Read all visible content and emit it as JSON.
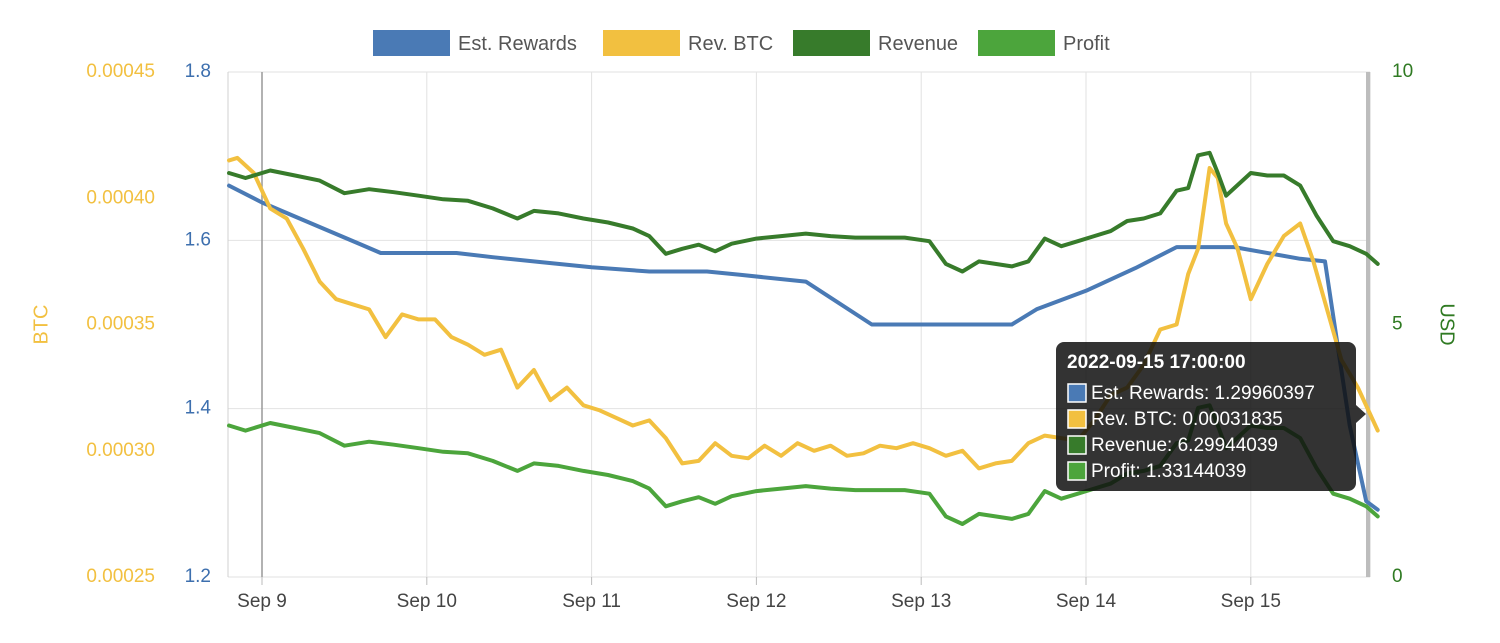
{
  "chart_data": {
    "type": "line",
    "x_range": [
      "2022-09-08 18:00",
      "2022-09-15 19:00"
    ],
    "x_ticks": [
      "Sep 9",
      "Sep 10",
      "Sep 11",
      "Sep 12",
      "Sep 13",
      "Sep 14",
      "Sep 15"
    ],
    "axes": {
      "btc": {
        "label": "BTC",
        "ticks": [
          "0.00025",
          "0.00030",
          "0.00035",
          "0.00040",
          "0.00045"
        ],
        "min": 0.00025,
        "max": 0.00045,
        "color": "#f2c040"
      },
      "rewards": {
        "ticks": [
          "1.2",
          "1.4",
          "1.6",
          "1.8"
        ],
        "min": 1.2,
        "max": 1.8,
        "color": "#3d6fae"
      },
      "usd": {
        "label": "USD",
        "ticks": [
          "0",
          "5",
          "10"
        ],
        "min": 0,
        "max": 10,
        "color": "#2f7a22"
      }
    },
    "grid": true,
    "legend_position": "top-center",
    "series": [
      {
        "name": "Est. Rewards",
        "axis": "rewards",
        "color": "#4a7ab5",
        "points": [
          [
            0,
            1.665
          ],
          [
            0.2,
            1.645
          ],
          [
            0.5,
            1.62
          ],
          [
            0.8,
            1.595
          ],
          [
            0.92,
            1.585
          ],
          [
            1.1,
            1.585
          ],
          [
            1.38,
            1.585
          ],
          [
            1.6,
            1.58
          ],
          [
            1.9,
            1.574
          ],
          [
            2.2,
            1.568
          ],
          [
            2.55,
            1.563
          ],
          [
            2.9,
            1.563
          ],
          [
            3.1,
            1.559
          ],
          [
            3.5,
            1.551
          ],
          [
            3.9,
            1.5
          ],
          [
            4.1,
            1.5
          ],
          [
            4.3,
            1.5
          ],
          [
            4.6,
            1.5
          ],
          [
            4.75,
            1.5
          ],
          [
            4.9,
            1.518
          ],
          [
            5.2,
            1.54
          ],
          [
            5.5,
            1.567
          ],
          [
            5.75,
            1.592
          ],
          [
            6.0,
            1.592
          ],
          [
            6.1,
            1.592
          ],
          [
            6.5,
            1.578
          ],
          [
            6.65,
            1.575
          ],
          [
            6.8,
            1.38
          ],
          [
            6.9,
            1.29
          ],
          [
            6.97,
            1.28
          ]
        ]
      },
      {
        "name": "Rev. BTC",
        "axis": "btc",
        "color": "#f2c040",
        "points": [
          [
            0,
            0.000415
          ],
          [
            0.05,
            0.000416
          ],
          [
            0.15,
            0.00041
          ],
          [
            0.25,
            0.000396
          ],
          [
            0.35,
            0.000392
          ],
          [
            0.45,
            0.00038
          ],
          [
            0.55,
            0.000367
          ],
          [
            0.65,
            0.00036
          ],
          [
            0.75,
            0.000358
          ],
          [
            0.85,
            0.000356
          ],
          [
            0.95,
            0.000345
          ],
          [
            1.05,
            0.000354
          ],
          [
            1.15,
            0.000352
          ],
          [
            1.25,
            0.000352
          ],
          [
            1.35,
            0.000345
          ],
          [
            1.45,
            0.000342
          ],
          [
            1.55,
            0.000338
          ],
          [
            1.65,
            0.00034
          ],
          [
            1.75,
            0.000325
          ],
          [
            1.85,
            0.000332
          ],
          [
            1.95,
            0.00032
          ],
          [
            2.05,
            0.000325
          ],
          [
            2.15,
            0.000318
          ],
          [
            2.25,
            0.000316
          ],
          [
            2.35,
            0.000313
          ],
          [
            2.45,
            0.00031
          ],
          [
            2.55,
            0.000312
          ],
          [
            2.65,
            0.000305
          ],
          [
            2.75,
            0.000295
          ],
          [
            2.85,
            0.000296
          ],
          [
            2.95,
            0.000303
          ],
          [
            3.05,
            0.000298
          ],
          [
            3.15,
            0.000297
          ],
          [
            3.25,
            0.000302
          ],
          [
            3.35,
            0.000298
          ],
          [
            3.45,
            0.000303
          ],
          [
            3.55,
            0.0003
          ],
          [
            3.65,
            0.000302
          ],
          [
            3.75,
            0.000298
          ],
          [
            3.85,
            0.000299
          ],
          [
            3.95,
            0.000302
          ],
          [
            4.05,
            0.000301
          ],
          [
            4.15,
            0.000303
          ],
          [
            4.25,
            0.000301
          ],
          [
            4.35,
            0.000298
          ],
          [
            4.45,
            0.0003
          ],
          [
            4.55,
            0.000293
          ],
          [
            4.65,
            0.000295
          ],
          [
            4.75,
            0.000296
          ],
          [
            4.85,
            0.000303
          ],
          [
            4.95,
            0.000306
          ],
          [
            5.05,
            0.000305
          ],
          [
            5.15,
            0.000304
          ],
          [
            5.25,
            0.000312
          ],
          [
            5.35,
            0.000322
          ],
          [
            5.45,
            0.000325
          ],
          [
            5.55,
            0.000334
          ],
          [
            5.65,
            0.000348
          ],
          [
            5.75,
            0.00035
          ],
          [
            5.82,
            0.00037
          ],
          [
            5.88,
            0.00038
          ],
          [
            5.95,
            0.000412
          ],
          [
            6.0,
            0.000408
          ],
          [
            6.05,
            0.00039
          ],
          [
            6.12,
            0.00038
          ],
          [
            6.2,
            0.00036
          ],
          [
            6.3,
            0.000374
          ],
          [
            6.4,
            0.000385
          ],
          [
            6.5,
            0.00039
          ],
          [
            6.58,
            0.000375
          ],
          [
            6.68,
            0.000352
          ],
          [
            6.75,
            0.000336
          ],
          [
            6.85,
            0.000325
          ],
          [
            6.97,
            0.000308
          ]
        ]
      },
      {
        "name": "Revenue",
        "axis": "usd",
        "color": "#377b2b",
        "points": [
          [
            0,
            8.0
          ],
          [
            0.1,
            7.9
          ],
          [
            0.25,
            8.05
          ],
          [
            0.4,
            7.95
          ],
          [
            0.55,
            7.85
          ],
          [
            0.7,
            7.6
          ],
          [
            0.85,
            7.68
          ],
          [
            1.0,
            7.62
          ],
          [
            1.15,
            7.55
          ],
          [
            1.3,
            7.48
          ],
          [
            1.45,
            7.45
          ],
          [
            1.6,
            7.3
          ],
          [
            1.75,
            7.1
          ],
          [
            1.85,
            7.25
          ],
          [
            2.0,
            7.2
          ],
          [
            2.15,
            7.1
          ],
          [
            2.3,
            7.02
          ],
          [
            2.45,
            6.9
          ],
          [
            2.55,
            6.75
          ],
          [
            2.65,
            6.4
          ],
          [
            2.75,
            6.5
          ],
          [
            2.85,
            6.58
          ],
          [
            2.95,
            6.45
          ],
          [
            3.05,
            6.6
          ],
          [
            3.2,
            6.7
          ],
          [
            3.35,
            6.75
          ],
          [
            3.5,
            6.8
          ],
          [
            3.65,
            6.75
          ],
          [
            3.8,
            6.72
          ],
          [
            3.95,
            6.72
          ],
          [
            4.1,
            6.72
          ],
          [
            4.25,
            6.65
          ],
          [
            4.35,
            6.2
          ],
          [
            4.45,
            6.05
          ],
          [
            4.55,
            6.25
          ],
          [
            4.65,
            6.2
          ],
          [
            4.75,
            6.15
          ],
          [
            4.85,
            6.25
          ],
          [
            4.95,
            6.7
          ],
          [
            5.05,
            6.55
          ],
          [
            5.15,
            6.65
          ],
          [
            5.25,
            6.75
          ],
          [
            5.35,
            6.85
          ],
          [
            5.45,
            7.05
          ],
          [
            5.55,
            7.1
          ],
          [
            5.65,
            7.2
          ],
          [
            5.75,
            7.65
          ],
          [
            5.82,
            7.7
          ],
          [
            5.88,
            8.35
          ],
          [
            5.95,
            8.4
          ],
          [
            6.0,
            8.0
          ],
          [
            6.05,
            7.55
          ],
          [
            6.1,
            7.7
          ],
          [
            6.2,
            8.0
          ],
          [
            6.3,
            7.95
          ],
          [
            6.4,
            7.95
          ],
          [
            6.5,
            7.75
          ],
          [
            6.6,
            7.15
          ],
          [
            6.7,
            6.65
          ],
          [
            6.8,
            6.55
          ],
          [
            6.9,
            6.4
          ],
          [
            6.97,
            6.2
          ]
        ]
      },
      {
        "name": "Profit",
        "axis": "usd",
        "color": "#4ca53c",
        "points": [
          [
            0,
            3.0
          ],
          [
            0.1,
            2.9
          ],
          [
            0.25,
            3.05
          ],
          [
            0.4,
            2.95
          ],
          [
            0.55,
            2.85
          ],
          [
            0.7,
            2.6
          ],
          [
            0.85,
            2.68
          ],
          [
            1.0,
            2.62
          ],
          [
            1.15,
            2.55
          ],
          [
            1.3,
            2.48
          ],
          [
            1.45,
            2.45
          ],
          [
            1.6,
            2.3
          ],
          [
            1.75,
            2.1
          ],
          [
            1.85,
            2.25
          ],
          [
            2.0,
            2.2
          ],
          [
            2.15,
            2.1
          ],
          [
            2.3,
            2.02
          ],
          [
            2.45,
            1.9
          ],
          [
            2.55,
            1.75
          ],
          [
            2.65,
            1.4
          ],
          [
            2.75,
            1.5
          ],
          [
            2.85,
            1.58
          ],
          [
            2.95,
            1.45
          ],
          [
            3.05,
            1.6
          ],
          [
            3.2,
            1.7
          ],
          [
            3.35,
            1.75
          ],
          [
            3.5,
            1.8
          ],
          [
            3.65,
            1.75
          ],
          [
            3.8,
            1.72
          ],
          [
            3.95,
            1.72
          ],
          [
            4.1,
            1.72
          ],
          [
            4.25,
            1.65
          ],
          [
            4.35,
            1.2
          ],
          [
            4.45,
            1.05
          ],
          [
            4.55,
            1.25
          ],
          [
            4.65,
            1.2
          ],
          [
            4.75,
            1.15
          ],
          [
            4.85,
            1.25
          ],
          [
            4.95,
            1.7
          ],
          [
            5.05,
            1.55
          ],
          [
            5.15,
            1.65
          ],
          [
            5.25,
            1.75
          ],
          [
            5.35,
            1.85
          ],
          [
            5.45,
            2.05
          ],
          [
            5.55,
            2.1
          ],
          [
            5.65,
            2.2
          ],
          [
            5.75,
            2.65
          ],
          [
            5.82,
            2.7
          ],
          [
            5.88,
            3.35
          ],
          [
            5.95,
            3.4
          ],
          [
            6.0,
            3.0
          ],
          [
            6.05,
            2.55
          ],
          [
            6.1,
            2.7
          ],
          [
            6.2,
            3.0
          ],
          [
            6.3,
            2.95
          ],
          [
            6.4,
            2.95
          ],
          [
            6.5,
            2.75
          ],
          [
            6.6,
            2.15
          ],
          [
            6.7,
            1.65
          ],
          [
            6.8,
            1.55
          ],
          [
            6.9,
            1.4
          ],
          [
            6.97,
            1.2
          ]
        ]
      }
    ],
    "tooltip": {
      "title": "2022-09-15 17:00:00",
      "lines": [
        {
          "text": "Est. Rewards: 1.29960397",
          "color": "#4a7ab5"
        },
        {
          "text": "Rev. BTC: 0.00031835",
          "color": "#f2c040"
        },
        {
          "text": "Revenue: 6.29944039",
          "color": "#377b2b"
        },
        {
          "text": "Profit: 1.33144039",
          "color": "#4ca53c"
        }
      ]
    }
  }
}
